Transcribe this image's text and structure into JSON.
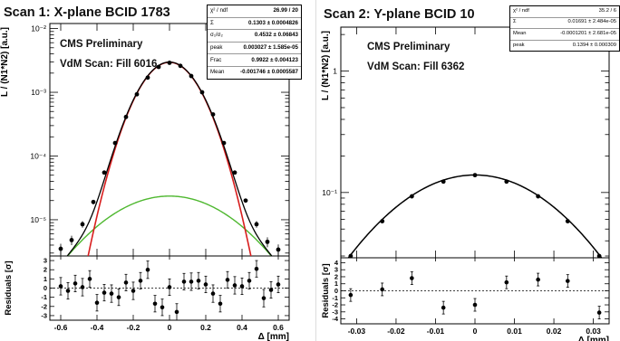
{
  "panels": [
    {
      "title": "Scan 1: X-plane BCID 1783",
      "cms_label": "CMS Preliminary",
      "vdm_label": "VdM Scan: Fill 6016",
      "stats": [
        {
          "label": "χ² / ndf",
          "value": "26.99 / 20"
        },
        {
          "label": "Σ",
          "value": "0.1303 ± 0.0004826"
        },
        {
          "label": "σ₁/σ₂",
          "value": "0.4532 ± 0.06843"
        },
        {
          "label": "peak",
          "value": "0.003027 ± 1.585e-05"
        },
        {
          "label": "Frac",
          "value": "0.9922 ± 0.004123"
        },
        {
          "label": "Mean",
          "value": "-0.001746 ± 0.0005587"
        }
      ]
    },
    {
      "title": "Scan 2: Y-plane BCID 10",
      "cms_label": "CMS Preliminary",
      "vdm_label": "VdM Scan: Fill 6362",
      "stats": [
        {
          "label": "χ² / ndf",
          "value": "35.2 / 6"
        },
        {
          "label": "Σ",
          "value": "0.01691 ± 2.484e-05"
        },
        {
          "label": "Mean",
          "value": "-0.0001201 ± 2.681e-05"
        },
        {
          "label": "peak",
          "value": "0.1394 ± 0.000309"
        }
      ]
    }
  ],
  "chart_data": [
    {
      "type": "scatter",
      "title": "Scan 1: X-plane BCID 1783",
      "xlabel": "Δ [mm]",
      "ylabel": "L / (N1*N2) [a.u.]",
      "y_scale": "log",
      "xlim": [
        -0.66,
        0.66
      ],
      "ylim": [
        2.7e-06,
        0.012
      ],
      "x_ticks": [
        -0.6,
        -0.4,
        -0.2,
        0,
        0.2,
        0.4,
        0.6
      ],
      "x_tick_labels": [
        "-0.6",
        "-0.4",
        "-0.2",
        "0",
        "0.2",
        "0.4",
        "0.6"
      ],
      "y_ticks": [
        1e-05,
        0.0001,
        0.001,
        0.01
      ],
      "y_tick_labels": [
        "10⁻⁵",
        "10⁻⁴",
        "10⁻³",
        "10⁻²"
      ],
      "series": [
        {
          "name": "data",
          "x": [
            -0.6,
            -0.54,
            -0.48,
            -0.42,
            -0.36,
            -0.3,
            -0.24,
            -0.18,
            -0.12,
            -0.06,
            0.0,
            0.06,
            0.12,
            0.18,
            0.24,
            0.3,
            0.36,
            0.42,
            0.48,
            0.54,
            0.6
          ],
          "y": [
            3.5e-06,
            4.8e-06,
            8.5e-06,
            1.9e-05,
            5.5e-05,
            0.00016,
            0.00041,
            0.00093,
            0.0017,
            0.0025,
            0.0029,
            0.0026,
            0.0018,
            0.001,
            0.00045,
            0.00016,
            5.5e-05,
            2e-05,
            8.5e-06,
            4.5e-06,
            3.4e-06
          ],
          "y_err": [
            7e-07,
            8e-07,
            1e-06,
            1.5e-06,
            3e-06,
            5e-06,
            1e-05,
            2e-05,
            3e-05,
            4e-05,
            5e-05,
            4e-05,
            3e-05,
            2e-05,
            1e-05,
            5e-06,
            3e-06,
            1.5e-06,
            1e-06,
            8e-07,
            7e-07
          ]
        }
      ],
      "fits": {
        "total_color": "#000000",
        "narrow_color": "#d81e1e",
        "wide_color": "#4fb830"
      },
      "residuals": {
        "ylabel": "Residuals [σ]",
        "ylim": [
          -3.5,
          3.5
        ],
        "y_ticks": [
          -3,
          -2,
          -1,
          0,
          1,
          2,
          3
        ],
        "x": [
          -0.6,
          -0.56,
          -0.52,
          -0.48,
          -0.44,
          -0.4,
          -0.36,
          -0.32,
          -0.28,
          -0.24,
          -0.2,
          -0.16,
          -0.12,
          -0.08,
          -0.04,
          0.0,
          0.04,
          0.08,
          0.12,
          0.16,
          0.2,
          0.24,
          0.28,
          0.32,
          0.36,
          0.4,
          0.44,
          0.48,
          0.52,
          0.56,
          0.6
        ],
        "y": [
          0.2,
          -0.3,
          0.5,
          0.1,
          1.0,
          -1.6,
          -0.5,
          -0.6,
          -1.0,
          0.6,
          -0.3,
          0.8,
          2.0,
          -1.7,
          -2.1,
          0.1,
          -2.6,
          0.7,
          0.7,
          0.8,
          0.4,
          -0.6,
          -1.7,
          0.9,
          0.3,
          0.2,
          0.8,
          2.1,
          -1.1,
          -0.2,
          0.4
        ],
        "y_err": [
          0.95,
          0.9,
          0.9,
          0.95,
          0.9,
          0.9,
          0.9,
          0.95,
          0.9,
          0.9,
          0.95,
          0.9,
          0.95,
          0.9,
          0.9,
          0.9,
          0.9,
          0.9,
          0.95,
          0.9,
          0.9,
          0.95,
          0.9,
          0.9,
          0.95,
          0.9,
          0.9,
          0.9,
          0.95,
          0.9,
          0.9
        ]
      }
    },
    {
      "type": "scatter",
      "title": "Scan 2: Y-plane BCID 10",
      "xlabel": "Δ [mm]",
      "ylabel": "L / (N1*N2) [a.u.]",
      "y_scale": "log",
      "xlim": [
        -0.034,
        0.034
      ],
      "ylim": [
        0.029,
        2.3
      ],
      "x_ticks": [
        -0.03,
        -0.02,
        -0.01,
        0,
        0.01,
        0.02,
        0.03
      ],
      "x_tick_labels": [
        "-0.03",
        "-0.02",
        "-0.01",
        "0",
        "0.01",
        "0.02",
        "0.03"
      ],
      "y_ticks": [
        0.1,
        1
      ],
      "y_tick_labels": [
        "10⁻¹",
        "1"
      ],
      "series": [
        {
          "name": "data",
          "x": [
            -0.0315,
            -0.0235,
            -0.016,
            -0.008,
            0.0,
            0.008,
            0.016,
            0.0235,
            0.0315
          ],
          "y": [
            0.03,
            0.058,
            0.093,
            0.123,
            0.139,
            0.123,
            0.093,
            0.058,
            0.03
          ],
          "y_err": [
            0.0005,
            0.0005,
            0.0005,
            0.0005,
            0.0005,
            0.0005,
            0.0005,
            0.0005,
            0.0005
          ]
        }
      ],
      "fits": {
        "total_color": "#000000"
      },
      "residuals": {
        "ylabel": "Residuals [σ]",
        "ylim": [
          -4.7,
          4.7
        ],
        "y_ticks": [
          -4,
          -3,
          -2,
          -1,
          0,
          1,
          2,
          3,
          4
        ],
        "y_tick_labels": [
          "-4",
          "-3",
          "-2",
          "-1",
          "0",
          "1",
          "2",
          "3",
          "4"
        ],
        "x": [
          -0.0315,
          -0.0235,
          -0.016,
          -0.008,
          0.0,
          0.008,
          0.016,
          0.0235,
          0.0315
        ],
        "y": [
          -0.6,
          0.2,
          1.8,
          -2.4,
          -2.0,
          1.2,
          1.6,
          1.4,
          -3.1
        ],
        "y_err": [
          0.9,
          0.9,
          0.9,
          0.9,
          0.9,
          0.9,
          0.9,
          0.9,
          0.9
        ]
      }
    }
  ]
}
